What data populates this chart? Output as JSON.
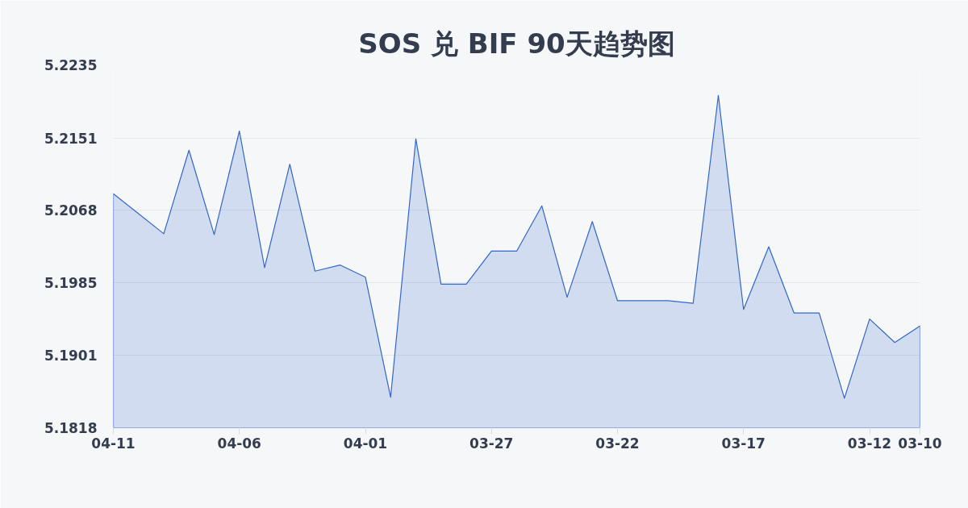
{
  "chart_data": {
    "type": "area",
    "title": "SOS 兑 BIF 90天趋势图",
    "categories": [
      "04-11",
      null,
      null,
      null,
      null,
      "04-06",
      null,
      null,
      null,
      null,
      "04-01",
      null,
      null,
      null,
      null,
      "03-27",
      null,
      null,
      null,
      null,
      "03-22",
      null,
      null,
      null,
      null,
      "03-17",
      null,
      null,
      null,
      null,
      "03-12",
      null,
      "03-10"
    ],
    "series": [
      {
        "color": "#3366cc",
        "values": [
          5.2087,
          5.2064,
          5.2041,
          5.2137,
          5.204,
          5.2159,
          5.2002,
          5.2121,
          5.1998,
          5.2005,
          5.1991,
          5.1853,
          5.215,
          5.1983,
          5.1983,
          5.2021,
          5.2021,
          5.2073,
          5.1968,
          5.2055,
          5.1964,
          5.1964,
          5.1964,
          5.1961,
          5.22,
          5.1954,
          5.2026,
          5.195,
          5.195,
          5.1852,
          5.1943,
          5.1916,
          5.1935
        ]
      }
    ],
    "ylim": [
      5.1818,
      5.2235
    ],
    "yticks": [
      5.1818,
      5.1901,
      5.1985,
      5.2068,
      5.2151,
      5.2235
    ],
    "grid": "y"
  }
}
